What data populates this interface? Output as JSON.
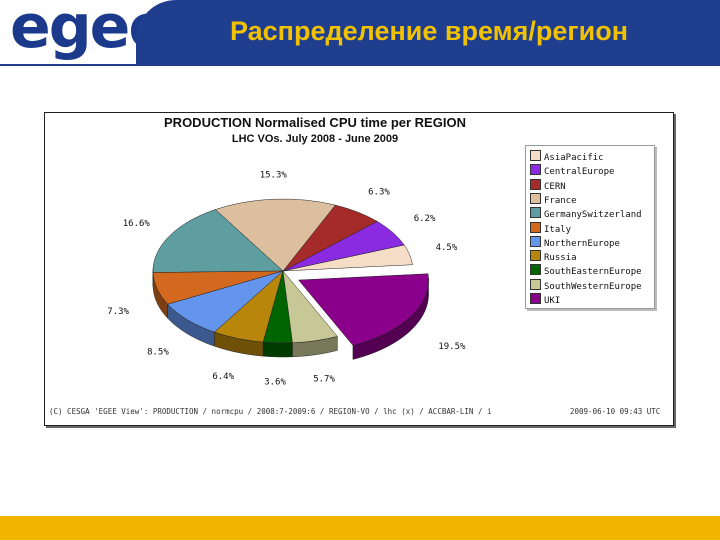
{
  "logo": {
    "text": "egee"
  },
  "slide": {
    "title": "Распределение время/регион"
  },
  "colors": {
    "header_blue": "#1f3e8e",
    "title_yellow": "#f2c200",
    "footer_yellow": "#f2b600"
  },
  "chart_data": {
    "type": "pie",
    "title": "PRODUCTION Normalised CPU time per REGION",
    "subtitle": "LHC VOs. July 2008 - June 2009",
    "slices": [
      {
        "name": "AsiaPacific",
        "value": 4.5,
        "label": "4.5%",
        "color": "#f5ddc8"
      },
      {
        "name": "CentralEurope",
        "value": 6.2,
        "label": "6.2%",
        "color": "#8a2be2"
      },
      {
        "name": "CERN",
        "value": 6.3,
        "label": "6.3%",
        "color": "#a52a2a"
      },
      {
        "name": "France",
        "value": 15.3,
        "label": "15.3%",
        "color": "#dbbf9e"
      },
      {
        "name": "GermanySwitzerland",
        "value": 16.6,
        "label": "16.6%",
        "color": "#5f9ea0"
      },
      {
        "name": "Italy",
        "value": 7.3,
        "label": "7.3%",
        "color": "#d2691e"
      },
      {
        "name": "NorthernEurope",
        "value": 8.5,
        "label": "8.5%",
        "color": "#6495ed"
      },
      {
        "name": "Russia",
        "value": 6.4,
        "label": "6.4%",
        "color": "#b8860b"
      },
      {
        "name": "SouthEasternEurope",
        "value": 3.6,
        "label": "3.6%",
        "color": "#006400"
      },
      {
        "name": "SouthWesternEurope",
        "value": 5.7,
        "label": "5.7%",
        "color": "#c8c896"
      },
      {
        "name": "UKI",
        "value": 19.5,
        "label": "19.5%",
        "color": "#8b008b"
      }
    ],
    "legend": [
      "AsiaPacific",
      "CentralEurope",
      "CERN",
      "France",
      "GermanySwitzerland",
      "Italy",
      "NorthernEurope",
      "Russia",
      "SouthEasternEurope",
      "SouthWesternEurope",
      "UKI"
    ],
    "legend_placement": "right",
    "exploded": [
      "UKI"
    ],
    "footnote": "(C) CESGA 'EGEE View': PRODUCTION / normcpu / 2008:7-2009:6 / REGION-VO / lhc (x) / ACCBAR-LIN / i",
    "timestamp": "2009-06-10 09:43 UTC"
  }
}
